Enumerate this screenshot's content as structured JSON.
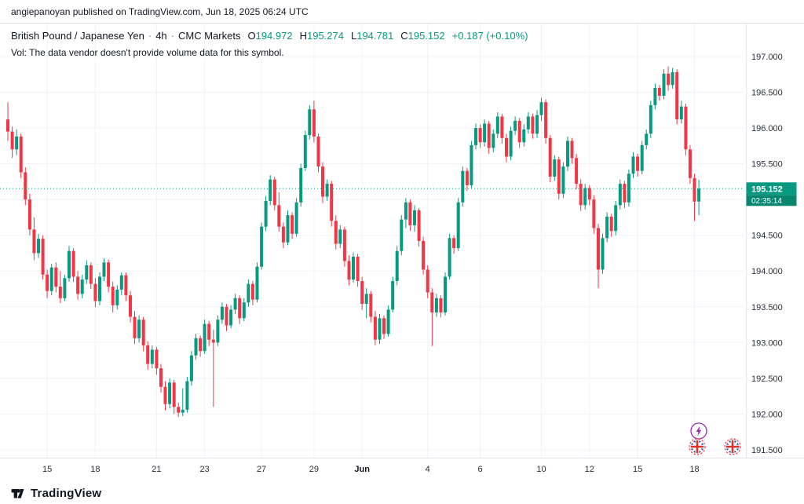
{
  "publish_bar": {
    "text": "angiepanoyan published on TradingView.com, Jun 18, 2025 06:24 UTC"
  },
  "legend": {
    "symbol": "British Pound / Japanese Yen",
    "separator": "·",
    "interval": "4h",
    "exchange": "CMC Markets",
    "ohlc": {
      "o_label": "O",
      "o": "194.972",
      "h_label": "H",
      "h": "195.274",
      "l_label": "L",
      "l": "194.781",
      "c_label": "C",
      "c": "195.152",
      "change": "+0.187 (+0.10%)"
    },
    "volume_note": "Vol: The data vendor doesn't provide volume data for this symbol."
  },
  "price_axis": {
    "labels": [
      "197.000",
      "196.500",
      "196.000",
      "195.500",
      "195.000",
      "194.500",
      "194.000",
      "193.500",
      "193.000",
      "192.500",
      "192.000",
      "191.500"
    ],
    "last_price": "195.152",
    "countdown": "02:35:14"
  },
  "time_axis": {
    "ticks": [
      {
        "index": 9,
        "label": "15"
      },
      {
        "index": 20,
        "label": "18"
      },
      {
        "index": 34,
        "label": "21"
      },
      {
        "index": 45,
        "label": "23"
      },
      {
        "index": 58,
        "label": "27"
      },
      {
        "index": 70,
        "label": "29"
      },
      {
        "index": 81,
        "label": "Jun",
        "bold": true
      },
      {
        "index": 96,
        "label": "4"
      },
      {
        "index": 108,
        "label": "6"
      },
      {
        "index": 122,
        "label": "10"
      },
      {
        "index": 133,
        "label": "12"
      },
      {
        "index": 144,
        "label": "15"
      },
      {
        "index": 157,
        "label": "18"
      }
    ]
  },
  "markers": {
    "lightning_icon": "lightning-bolt",
    "flag_icons": [
      "uk-flag",
      "uk-flag"
    ]
  },
  "footer": {
    "logo_text": "TradingView"
  },
  "colors": {
    "up": "#089981",
    "down": "#F23645",
    "last_price_line": "#089981",
    "grid": "#f0f3fa",
    "axis_text": "#2a2e39",
    "badge_bg": "#089981",
    "badge_bg2": "#07866f",
    "badge_text": "#ffffff"
  },
  "chart_data": {
    "type": "candlestick",
    "title": "British Pound / Japanese Yen",
    "interval": "4h",
    "exchange": "CMC Markets",
    "ohlc_format": [
      "open",
      "high",
      "low",
      "close"
    ],
    "y_range": [
      191.5,
      197.0
    ],
    "x_range": [
      "May 15",
      "Jun 18"
    ],
    "grid": true,
    "last": {
      "open": 194.972,
      "high": 195.274,
      "low": 194.781,
      "close": 195.152,
      "change": "+0.187 (+0.10%)"
    },
    "candles": [
      [
        196.12,
        196.36,
        195.82,
        195.95
      ],
      [
        195.95,
        196.02,
        195.58,
        195.7
      ],
      [
        195.7,
        195.98,
        195.62,
        195.88
      ],
      [
        195.88,
        195.92,
        195.3,
        195.38
      ],
      [
        195.38,
        195.45,
        194.92,
        195.0
      ],
      [
        195.0,
        195.08,
        194.5,
        194.58
      ],
      [
        194.58,
        194.75,
        194.15,
        194.25
      ],
      [
        194.25,
        194.52,
        194.18,
        194.45
      ],
      [
        194.45,
        194.5,
        193.88,
        193.95
      ],
      [
        193.95,
        194.02,
        193.62,
        193.72
      ],
      [
        193.72,
        194.1,
        193.66,
        194.05
      ],
      [
        194.05,
        194.12,
        193.7,
        193.78
      ],
      [
        193.78,
        194.0,
        193.55,
        193.62
      ],
      [
        193.62,
        193.95,
        193.58,
        193.9
      ],
      [
        193.9,
        194.35,
        193.85,
        194.28
      ],
      [
        194.28,
        194.32,
        193.85,
        193.92
      ],
      [
        193.92,
        194.0,
        193.6,
        193.68
      ],
      [
        193.68,
        193.95,
        193.62,
        193.88
      ],
      [
        193.88,
        194.15,
        193.82,
        194.08
      ],
      [
        194.08,
        194.12,
        193.75,
        193.82
      ],
      [
        193.82,
        193.9,
        193.5,
        193.58
      ],
      [
        193.58,
        193.98,
        193.52,
        193.92
      ],
      [
        193.92,
        194.18,
        193.86,
        194.12
      ],
      [
        194.12,
        194.16,
        193.7,
        193.78
      ],
      [
        193.78,
        193.85,
        193.42,
        193.52
      ],
      [
        193.52,
        193.8,
        193.46,
        193.74
      ],
      [
        193.74,
        193.98,
        193.66,
        193.94
      ],
      [
        193.94,
        193.98,
        193.58,
        193.66
      ],
      [
        193.66,
        193.72,
        193.28,
        193.36
      ],
      [
        193.36,
        193.44,
        192.98,
        193.06
      ],
      [
        193.06,
        193.38,
        193.0,
        193.32
      ],
      [
        193.32,
        193.36,
        192.88,
        192.96
      ],
      [
        192.96,
        193.02,
        192.62,
        192.7
      ],
      [
        192.7,
        192.96,
        192.64,
        192.9
      ],
      [
        192.9,
        192.94,
        192.55,
        192.64
      ],
      [
        192.64,
        192.7,
        192.3,
        192.38
      ],
      [
        192.38,
        192.46,
        192.05,
        192.14
      ],
      [
        192.14,
        192.5,
        192.08,
        192.44
      ],
      [
        192.44,
        192.48,
        192.0,
        192.1
      ],
      [
        192.1,
        192.16,
        191.96,
        192.02
      ],
      [
        192.02,
        192.36,
        191.97,
        192.06
      ],
      [
        192.06,
        192.52,
        192.02,
        192.46
      ],
      [
        192.46,
        192.88,
        192.4,
        192.82
      ],
      [
        192.82,
        193.12,
        192.76,
        193.06
      ],
      [
        193.06,
        193.1,
        192.8,
        192.88
      ],
      [
        192.88,
        193.32,
        192.84,
        193.26
      ],
      [
        193.26,
        193.3,
        192.95,
        193.04
      ],
      [
        193.04,
        193.18,
        192.1,
        193.0
      ],
      [
        193.0,
        193.38,
        192.95,
        193.32
      ],
      [
        193.32,
        193.56,
        193.26,
        193.5
      ],
      [
        193.5,
        193.54,
        193.16,
        193.24
      ],
      [
        193.24,
        193.52,
        193.2,
        193.46
      ],
      [
        193.46,
        193.68,
        193.4,
        193.62
      ],
      [
        193.62,
        193.66,
        193.26,
        193.34
      ],
      [
        193.34,
        193.62,
        193.3,
        193.56
      ],
      [
        193.56,
        193.88,
        193.5,
        193.82
      ],
      [
        193.82,
        193.86,
        193.52,
        193.6
      ],
      [
        193.6,
        194.12,
        193.56,
        194.06
      ],
      [
        194.06,
        194.68,
        194.02,
        194.62
      ],
      [
        194.62,
        195.05,
        194.56,
        194.98
      ],
      [
        194.98,
        195.34,
        194.92,
        195.28
      ],
      [
        195.28,
        195.32,
        194.85,
        194.92
      ],
      [
        194.92,
        195.1,
        194.55,
        194.62
      ],
      [
        194.62,
        194.68,
        194.32,
        194.4
      ],
      [
        194.4,
        194.85,
        194.36,
        194.78
      ],
      [
        194.78,
        194.82,
        194.45,
        194.52
      ],
      [
        194.52,
        195.02,
        194.48,
        194.96
      ],
      [
        194.96,
        195.5,
        194.9,
        195.44
      ],
      [
        195.44,
        195.96,
        195.4,
        195.9
      ],
      [
        195.9,
        196.32,
        195.84,
        196.26
      ],
      [
        196.26,
        196.38,
        195.8,
        195.88
      ],
      [
        195.88,
        195.92,
        195.38,
        195.46
      ],
      [
        195.46,
        195.52,
        194.95,
        195.04
      ],
      [
        195.04,
        195.28,
        194.98,
        195.22
      ],
      [
        195.22,
        195.26,
        194.62,
        194.7
      ],
      [
        194.7,
        194.78,
        194.3,
        194.38
      ],
      [
        194.38,
        194.64,
        194.32,
        194.58
      ],
      [
        194.58,
        194.62,
        194.06,
        194.14
      ],
      [
        194.14,
        194.22,
        193.8,
        193.88
      ],
      [
        193.88,
        194.26,
        193.84,
        194.2
      ],
      [
        194.2,
        194.24,
        193.78,
        193.86
      ],
      [
        193.86,
        193.92,
        193.46,
        193.54
      ],
      [
        193.54,
        193.76,
        193.34,
        193.68
      ],
      [
        193.68,
        193.72,
        193.28,
        193.36
      ],
      [
        193.36,
        193.44,
        192.96,
        193.04
      ],
      [
        193.04,
        193.4,
        192.98,
        193.34
      ],
      [
        193.34,
        193.38,
        193.05,
        193.12
      ],
      [
        193.12,
        193.52,
        193.08,
        193.46
      ],
      [
        193.46,
        193.92,
        193.42,
        193.86
      ],
      [
        193.86,
        194.35,
        193.8,
        194.28
      ],
      [
        194.28,
        194.78,
        194.22,
        194.72
      ],
      [
        194.72,
        195.02,
        194.6,
        194.96
      ],
      [
        194.96,
        195.0,
        194.56,
        194.64
      ],
      [
        194.64,
        194.92,
        194.55,
        194.85
      ],
      [
        194.85,
        194.88,
        194.34,
        194.42
      ],
      [
        194.42,
        194.48,
        193.95,
        194.02
      ],
      [
        194.02,
        194.08,
        193.62,
        193.7
      ],
      [
        193.7,
        193.76,
        192.95,
        193.42
      ],
      [
        193.42,
        193.68,
        193.36,
        193.62
      ],
      [
        193.62,
        193.66,
        193.35,
        193.42
      ],
      [
        193.42,
        193.98,
        193.38,
        193.92
      ],
      [
        193.92,
        194.52,
        193.88,
        194.46
      ],
      [
        194.46,
        194.5,
        194.24,
        194.32
      ],
      [
        194.32,
        195.02,
        194.28,
        194.96
      ],
      [
        194.96,
        195.46,
        194.9,
        195.4
      ],
      [
        195.4,
        195.44,
        195.12,
        195.2
      ],
      [
        195.2,
        195.82,
        195.16,
        195.76
      ],
      [
        195.76,
        196.06,
        195.7,
        196.0
      ],
      [
        196.0,
        196.05,
        195.72,
        195.8
      ],
      [
        195.8,
        196.12,
        195.74,
        196.06
      ],
      [
        196.06,
        196.1,
        195.64,
        195.72
      ],
      [
        195.72,
        195.98,
        195.66,
        195.92
      ],
      [
        195.92,
        196.22,
        195.86,
        196.16
      ],
      [
        196.16,
        196.2,
        195.78,
        195.86
      ],
      [
        195.86,
        195.92,
        195.52,
        195.6
      ],
      [
        195.6,
        196.02,
        195.55,
        195.96
      ],
      [
        195.96,
        196.16,
        195.9,
        196.1
      ],
      [
        196.1,
        196.14,
        195.72,
        195.8
      ],
      [
        195.8,
        196.05,
        195.74,
        195.98
      ],
      [
        195.98,
        196.22,
        195.92,
        196.16
      ],
      [
        196.16,
        196.2,
        195.85,
        195.92
      ],
      [
        195.92,
        196.25,
        195.86,
        196.18
      ],
      [
        196.18,
        196.42,
        196.1,
        196.36
      ],
      [
        196.36,
        196.4,
        195.78,
        195.86
      ],
      [
        195.86,
        195.9,
        195.24,
        195.32
      ],
      [
        195.32,
        195.62,
        195.26,
        195.56
      ],
      [
        195.56,
        195.6,
        195.0,
        195.08
      ],
      [
        195.08,
        195.52,
        195.02,
        195.46
      ],
      [
        195.46,
        195.88,
        195.4,
        195.82
      ],
      [
        195.82,
        195.86,
        195.5,
        195.58
      ],
      [
        195.58,
        195.64,
        195.14,
        195.22
      ],
      [
        195.22,
        195.28,
        194.84,
        194.92
      ],
      [
        194.92,
        195.22,
        194.86,
        195.16
      ],
      [
        195.16,
        195.2,
        194.92,
        195.0
      ],
      [
        195.0,
        195.06,
        194.52,
        194.6
      ],
      [
        194.6,
        194.66,
        193.76,
        194.02
      ],
      [
        194.02,
        194.52,
        193.96,
        194.46
      ],
      [
        194.46,
        194.82,
        194.4,
        194.76
      ],
      [
        194.76,
        194.8,
        194.48,
        194.56
      ],
      [
        194.56,
        194.98,
        194.5,
        194.92
      ],
      [
        194.92,
        195.28,
        194.86,
        195.22
      ],
      [
        195.22,
        195.26,
        194.88,
        194.96
      ],
      [
        194.96,
        195.42,
        194.9,
        195.36
      ],
      [
        195.36,
        195.66,
        195.3,
        195.6
      ],
      [
        195.6,
        195.64,
        195.32,
        195.4
      ],
      [
        195.4,
        195.82,
        195.35,
        195.76
      ],
      [
        195.76,
        195.98,
        195.7,
        195.92
      ],
      [
        195.92,
        196.38,
        195.86,
        196.32
      ],
      [
        196.32,
        196.62,
        196.26,
        196.56
      ],
      [
        196.56,
        196.6,
        196.38,
        196.45
      ],
      [
        196.45,
        196.82,
        196.4,
        196.76
      ],
      [
        196.76,
        196.86,
        196.52,
        196.6
      ],
      [
        196.6,
        196.84,
        196.55,
        196.78
      ],
      [
        196.78,
        196.82,
        196.05,
        196.12
      ],
      [
        196.12,
        196.38,
        196.06,
        196.3
      ],
      [
        196.3,
        196.34,
        195.62,
        195.7
      ],
      [
        195.7,
        195.76,
        195.22,
        195.3
      ],
      [
        195.3,
        195.36,
        194.7,
        194.97
      ],
      [
        194.972,
        195.274,
        194.781,
        195.152
      ]
    ]
  }
}
